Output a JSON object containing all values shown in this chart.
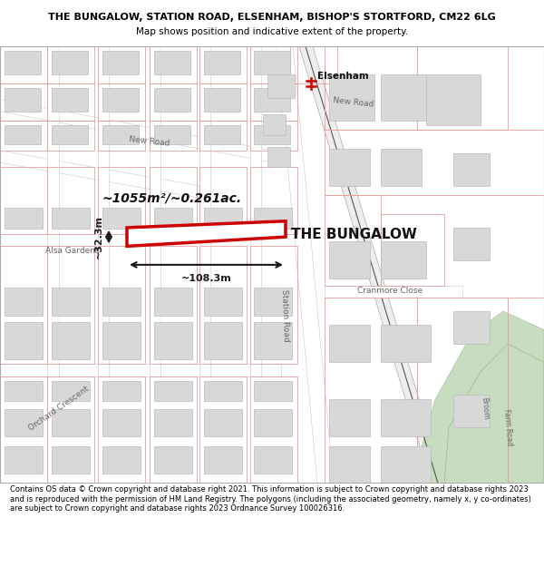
{
  "title_line1": "THE BUNGALOW, STATION ROAD, ELSENHAM, BISHOP'S STORTFORD, CM22 6LG",
  "title_line2": "Map shows position and indicative extent of the property.",
  "footer_text": "Contains OS data © Crown copyright and database right 2021. This information is subject to Crown copyright and database rights 2023 and is reproduced with the permission of HM Land Registry. The polygons (including the associated geometry, namely x, y co-ordinates) are subject to Crown copyright and database rights 2023 Ordnance Survey 100026316.",
  "property_label": "THE BUNGALOW",
  "area_label": "~1055m²/~0.261ac.",
  "dim_width": "~108.3m",
  "dim_height": "~32.3m",
  "map_bg": "#ffffff",
  "road_color": "#f5f5f5",
  "building_fill": "#d8d8d8",
  "building_outline": "#bbbbbb",
  "red_line_color": "#e8a0a0",
  "highlight_color": "#cc0000",
  "green_area_color": "#c8ddc0",
  "station_label": "Elsenham",
  "road_label_new_road_1": "New Road",
  "road_label_new_road_2": "New Road",
  "road_label_station": "Station Road",
  "road_label_cranmore": "Cranmore Close",
  "road_label_alsa": "Alsa Gardens",
  "road_label_orchard": "Orchard Crescent",
  "road_label_broom": "Broom",
  "road_label_farm": "Farm Road",
  "title_fontsize": 8.0,
  "subtitle_fontsize": 7.5,
  "footer_fontsize": 6.0
}
